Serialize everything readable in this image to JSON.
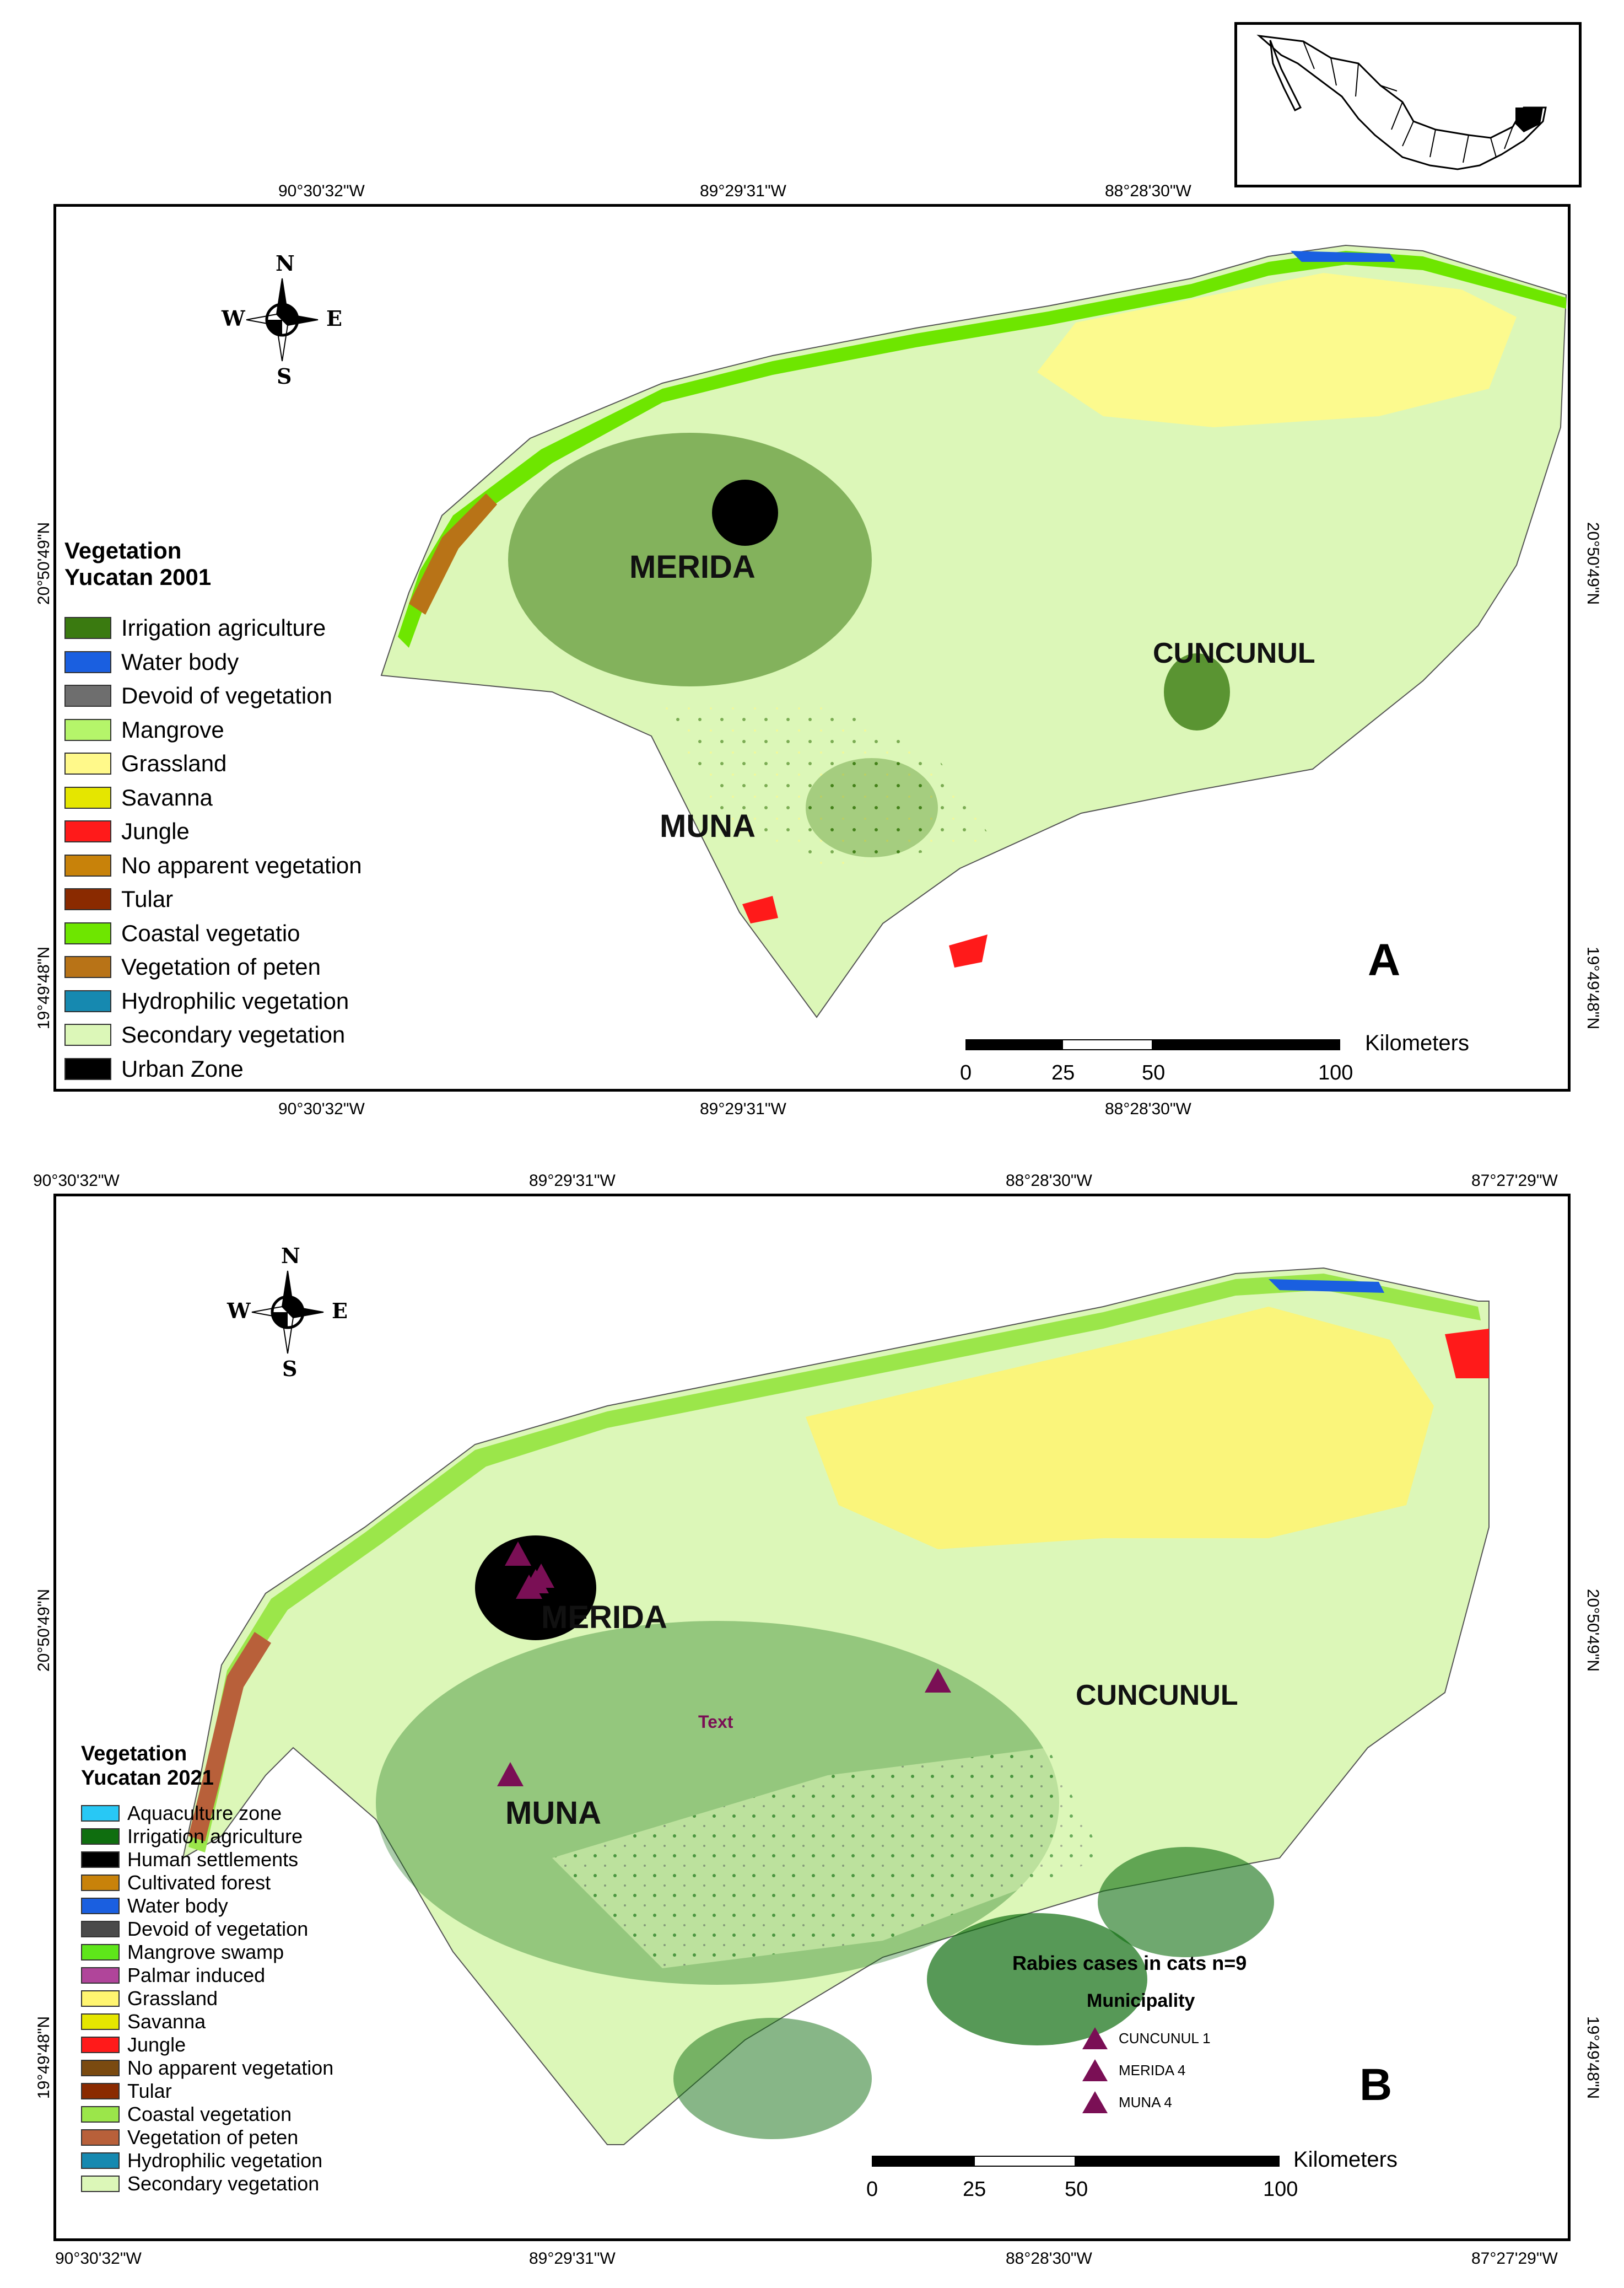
{
  "panel_a": {
    "letter": "A",
    "coords_top": [
      "90°30'32\"W",
      "89°29'31\"W",
      "88°28'30\"W"
    ],
    "coords_bottom": [
      "90°30'32\"W",
      "89°29'31\"W",
      "88°28'30\"W"
    ],
    "coords_left": [
      "20°50'49\"N",
      "19°49'48\"N"
    ],
    "coords_right": [
      "20°50'49\"N",
      "19°49'48\"N"
    ],
    "places": {
      "merida": "MERIDA",
      "muna": "MUNA",
      "cuncunul": "CUNCUNUL"
    },
    "legend": {
      "title_line1": "Vegetation",
      "title_line2": "Yucatan 2001",
      "items": [
        {
          "label": "Irrigation agriculture",
          "color": "#3a7a10"
        },
        {
          "label": "Water body",
          "color": "#1a5fe0"
        },
        {
          "label": "Devoid of vegetation",
          "color": "#6e6e6e"
        },
        {
          "label": "Mangrove",
          "color": "#b5f56a"
        },
        {
          "label": "Grassland",
          "color": "#fff98a"
        },
        {
          "label": "Savanna",
          "color": "#e5e600"
        },
        {
          "label": "Jungle",
          "color": "#ff1a1a"
        },
        {
          "label": "No apparent vegetation",
          "color": "#c8820a"
        },
        {
          "label": "Tular",
          "color": "#8a2a00"
        },
        {
          "label": "Coastal vegetatio",
          "color": "#6ee600"
        },
        {
          "label": "Vegetation of peten",
          "color": "#b87317"
        },
        {
          "label": "Hydrophilic vegetation",
          "color": "#1689b0"
        },
        {
          "label": "Secondary vegetation",
          "color": "#dcf7b8"
        },
        {
          "label": "Urban Zone",
          "color": "#000000"
        }
      ]
    },
    "compass": {
      "n": "N",
      "s": "S",
      "e": "E",
      "w": "W"
    },
    "scale": {
      "ticks": [
        "0",
        "25",
        "50",
        "100"
      ],
      "unit": "Kilometers"
    }
  },
  "panel_b": {
    "letter": "B",
    "coords_top": [
      "90°30'32\"W",
      "89°29'31\"W",
      "88°28'30\"W",
      "87°27'29\"W"
    ],
    "coords_bottom": [
      "90°30'32\"W",
      "89°29'31\"W",
      "88°28'30\"W",
      "87°27'29\"W"
    ],
    "coords_left": [
      "20°50'49\"N",
      "19°49'48\"N"
    ],
    "coords_right": [
      "20°50'49\"N",
      "19°49'48\"N"
    ],
    "places": {
      "merida": "MERIDA",
      "muna": "MUNA",
      "cuncunul": "CUNCUNUL",
      "text_label": "Text"
    },
    "legend": {
      "title_line1": "Vegetation",
      "title_line2": "Yucatan 2021",
      "items": [
        {
          "label": "Aquaculture zone",
          "color": "#28c8f5"
        },
        {
          "label": "Irrigation agriculture",
          "color": "#0f6e0f"
        },
        {
          "label": "Human settlements",
          "color": "#000000"
        },
        {
          "label": "Cultivated forest",
          "color": "#c8820a"
        },
        {
          "label": "Water body",
          "color": "#1a5fe0"
        },
        {
          "label": "Devoid of vegetation",
          "color": "#4a4a4a"
        },
        {
          "label": "Mangrove swamp",
          "color": "#5ee61a"
        },
        {
          "label": "Palmar induced",
          "color": "#b0459a"
        },
        {
          "label": "Grassland",
          "color": "#fff570"
        },
        {
          "label": "Savanna",
          "color": "#e5e600"
        },
        {
          "label": "Jungle",
          "color": "#ff1a1a"
        },
        {
          "label": "No apparent vegetation",
          "color": "#7a4a10"
        },
        {
          "label": "Tular",
          "color": "#8a2a00"
        },
        {
          "label": "Coastal vegetation",
          "color": "#9be64a"
        },
        {
          "label": "Vegetation of peten",
          "color": "#b8603a"
        },
        {
          "label": "Hydrophilic vegetation",
          "color": "#1689b0"
        },
        {
          "label": "Secondary vegetation",
          "color": "#dcf7b8"
        }
      ]
    },
    "compass": {
      "n": "N",
      "s": "S",
      "e": "E",
      "w": "W"
    },
    "scale": {
      "ticks": [
        "0",
        "25",
        "50",
        "100"
      ],
      "unit": "Kilometers"
    },
    "cases": {
      "title": "Rabies cases in cats n=9",
      "subtitle": "Municipality",
      "marker_color": "#7a0f55",
      "items": [
        "CUNCUNUL 1",
        "MERIDA 4",
        "MUNA 4"
      ]
    }
  }
}
